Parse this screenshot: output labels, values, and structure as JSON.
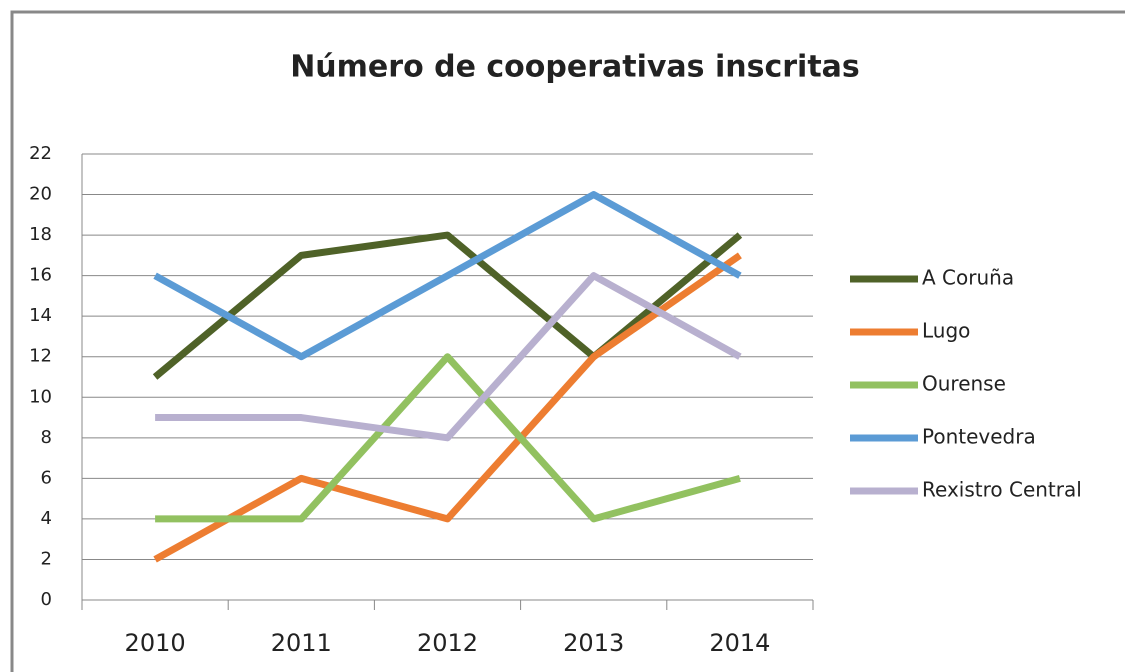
{
  "chart_data": {
    "type": "line",
    "title": "Número de cooperativas inscritas",
    "categories": [
      "2010",
      "2011",
      "2012",
      "2013",
      "2014"
    ],
    "series": [
      {
        "name": "A Coruña",
        "color": "#4f6228",
        "values": [
          11,
          17,
          18,
          12,
          18
        ]
      },
      {
        "name": "Lugo",
        "color": "#ed7d31",
        "values": [
          2,
          6,
          4,
          12,
          17
        ]
      },
      {
        "name": "Ourense",
        "color": "#92c160",
        "values": [
          4,
          4,
          12,
          4,
          6
        ]
      },
      {
        "name": "Pontevedra",
        "color": "#5b9bd5",
        "values": [
          16,
          12,
          16,
          20,
          16
        ]
      },
      {
        "name": "Rexistro Central",
        "color": "#b8b0cf",
        "values": [
          9,
          9,
          8,
          16,
          12
        ]
      }
    ],
    "ylim": [
      0,
      22
    ],
    "yticks": [
      0,
      2,
      4,
      6,
      8,
      10,
      12,
      14,
      16,
      18,
      20,
      22
    ],
    "grid": true,
    "legend": "right"
  }
}
